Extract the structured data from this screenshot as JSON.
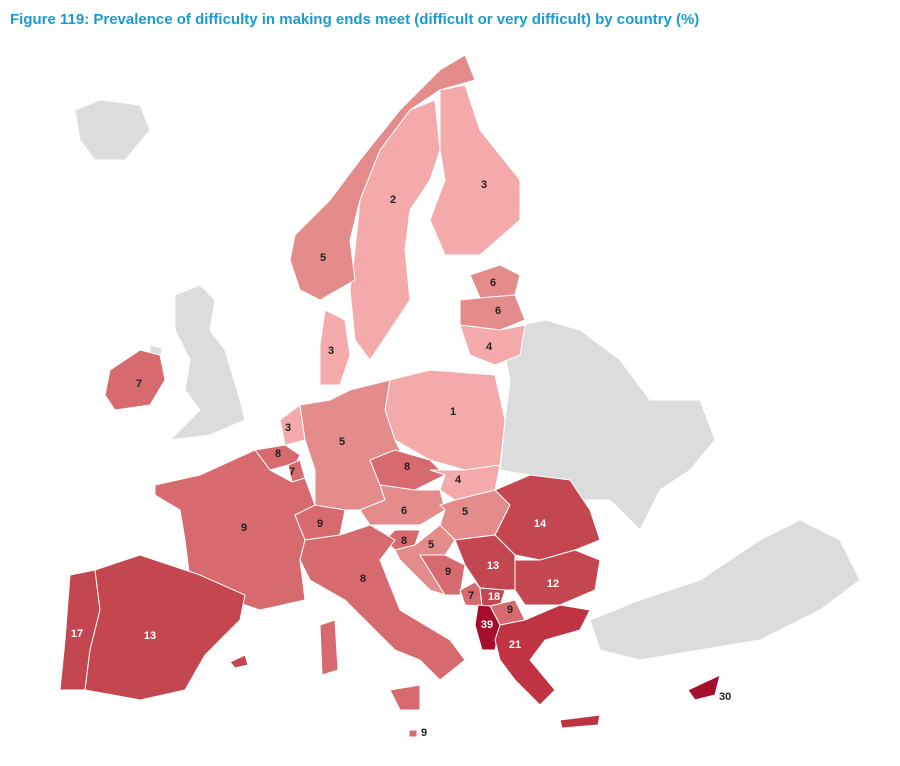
{
  "chart_data": {
    "type": "map",
    "title": "Figure 119: Prevalence of difficulty in making ends meet (difficult or very difficult) by country (%)",
    "values": [
      2,
      3,
      5,
      6,
      6,
      4,
      3,
      7,
      1,
      3,
      5,
      8,
      7,
      8,
      4,
      9,
      6,
      5,
      9,
      14,
      8,
      5,
      9,
      13,
      12,
      8,
      7,
      18,
      9,
      39,
      17,
      13,
      21,
      30,
      9
    ],
    "colors": [
      "#f4aaaa",
      "#f4aaaa",
      "#e48b8b",
      "#e48b8b",
      "#e48b8b",
      "#f4aaaa",
      "#f4aaaa",
      "#d66a6e",
      "#f4aaaa",
      "#f4aaaa",
      "#e48b8b",
      "#d66a6e",
      "#d66a6e",
      "#d66a6e",
      "#f4aaaa",
      "#d66a6e",
      "#e48b8b",
      "#e48b8b",
      "#d66a6e",
      "#c44650",
      "#d66a6e",
      "#e48b8b",
      "#d66a6e",
      "#c44650",
      "#c44650",
      "#d66a6e",
      "#d66a6e",
      "#c44650",
      "#d66a6e",
      "#a50f2d",
      "#c44650",
      "#c44650",
      "#bf3343",
      "#a50f2d",
      "#d66a6e"
    ]
  }
}
